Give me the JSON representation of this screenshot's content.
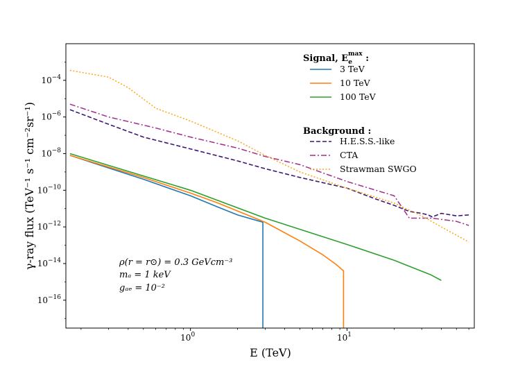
{
  "chart_data": {
    "type": "line",
    "xscale": "log",
    "yscale": "log",
    "xlim": [
      0.16,
      65
    ],
    "ylim": [
      3e-18,
      0.01
    ],
    "xlabel": "E (TeV)",
    "ylabel": "γ-ray flux (TeV⁻¹ s⁻¹ cm⁻²sr⁻¹)",
    "x_ticks": [
      {
        "value": 1,
        "base": "10",
        "exp": "0"
      },
      {
        "value": 10,
        "base": "10",
        "exp": "1"
      }
    ],
    "y_ticks": [
      {
        "value": 0.0001,
        "base": "10",
        "exp": "−4"
      },
      {
        "value": 1e-06,
        "base": "10",
        "exp": "−6"
      },
      {
        "value": 1e-08,
        "base": "10",
        "exp": "−8"
      },
      {
        "value": 1e-10,
        "base": "10",
        "exp": "−10"
      },
      {
        "value": 1e-12,
        "base": "10",
        "exp": "−12"
      },
      {
        "value": 1e-14,
        "base": "10",
        "exp": "−14"
      },
      {
        "value": 1e-16,
        "base": "10",
        "exp": "−16"
      }
    ],
    "legend_signal_title": "Signal,  E",
    "legend_signal_sup": "max",
    "legend_signal_sub": "e",
    "legend_signal_colon": " :",
    "legend_background_title": "Background",
    "legend_background_colon": " :",
    "annotation_lines": [
      "ρ(r = r⊙) = 0.3 GeVcm⁻³",
      "mₐ = 1 keV",
      "gₐₑ = 10⁻²"
    ],
    "series": [
      {
        "name": "3 TeV",
        "group": "signal",
        "color": "#1f77b4",
        "dash": "",
        "width": 1.6,
        "points": [
          [
            0.17,
            8e-09
          ],
          [
            0.5,
            4e-10
          ],
          [
            1.0,
            5e-11
          ],
          [
            1.5,
            1.2e-11
          ],
          [
            2.0,
            4.5e-12
          ],
          [
            2.5,
            2.6e-12
          ],
          [
            2.9,
            1.8e-12
          ],
          [
            2.9,
            3e-18
          ]
        ]
      },
      {
        "name": "10 TeV",
        "group": "signal",
        "color": "#ff7f0e",
        "dash": "",
        "width": 1.6,
        "points": [
          [
            0.17,
            8e-09
          ],
          [
            0.5,
            5e-10
          ],
          [
            1.0,
            7e-11
          ],
          [
            1.5,
            2e-11
          ],
          [
            3.0,
            1.8e-12
          ],
          [
            5.0,
            1.7e-13
          ],
          [
            7.0,
            3e-14
          ],
          [
            8.5,
            9e-15
          ],
          [
            9.5,
            4e-15
          ],
          [
            9.5,
            3e-18
          ]
        ]
      },
      {
        "name": "100 TeV",
        "group": "signal",
        "color": "#2ca02c",
        "dash": "",
        "width": 1.6,
        "points": [
          [
            0.17,
            1e-08
          ],
          [
            1.0,
            1e-10
          ],
          [
            3.0,
            3e-12
          ],
          [
            10,
            1.1e-13
          ],
          [
            20,
            1.5e-14
          ],
          [
            34,
            2.5e-15
          ],
          [
            40,
            1.2e-15
          ]
        ]
      },
      {
        "name": "H.E.S.S.-like",
        "group": "background",
        "color": "#3b1772",
        "dash": "6,3",
        "width": 1.6,
        "points": [
          [
            0.17,
            2.5e-06
          ],
          [
            0.3,
            4e-07
          ],
          [
            0.5,
            8e-08
          ],
          [
            1.0,
            1.8e-08
          ],
          [
            2.0,
            4e-09
          ],
          [
            3.0,
            1.5e-09
          ],
          [
            5.0,
            5e-10
          ],
          [
            10,
            1.3e-10
          ],
          [
            15,
            3.5e-11
          ],
          [
            20,
            1.5e-11
          ],
          [
            25,
            7e-12
          ],
          [
            30,
            5.5e-12
          ],
          [
            33,
            4.5e-12
          ],
          [
            35,
            3.5e-12
          ],
          [
            40,
            5.5e-12
          ],
          [
            50,
            4e-12
          ],
          [
            60,
            4.5e-12
          ]
        ]
      },
      {
        "name": "CTA",
        "group": "background",
        "color": "#a02c8a",
        "dash": "8,3,2,3",
        "width": 1.5,
        "points": [
          [
            0.17,
            5e-06
          ],
          [
            0.3,
            1e-06
          ],
          [
            0.6,
            2.5e-07
          ],
          [
            1.0,
            8e-08
          ],
          [
            2.0,
            2e-08
          ],
          [
            3.0,
            7e-09
          ],
          [
            5.0,
            2.5e-09
          ],
          [
            10,
            3e-10
          ],
          [
            20,
            5e-11
          ],
          [
            25,
            3e-12
          ],
          [
            35,
            3e-12
          ],
          [
            50,
            2e-12
          ],
          [
            60,
            1.2e-12
          ]
        ]
      },
      {
        "name": "Strawman SWGO",
        "group": "background",
        "color": "#ffa510",
        "dash": "2,2.5",
        "width": 1.5,
        "points": [
          [
            0.17,
            0.00035
          ],
          [
            0.3,
            0.00015
          ],
          [
            0.4,
            4e-05
          ],
          [
            0.6,
            3e-06
          ],
          [
            1.0,
            6e-07
          ],
          [
            2.0,
            5e-08
          ],
          [
            3.0,
            8e-09
          ],
          [
            5.0,
            1e-09
          ],
          [
            10,
            1.3e-10
          ],
          [
            20,
            2e-11
          ],
          [
            30,
            4e-12
          ],
          [
            40,
            1e-12
          ],
          [
            60,
            1.5e-13
          ]
        ]
      }
    ]
  }
}
